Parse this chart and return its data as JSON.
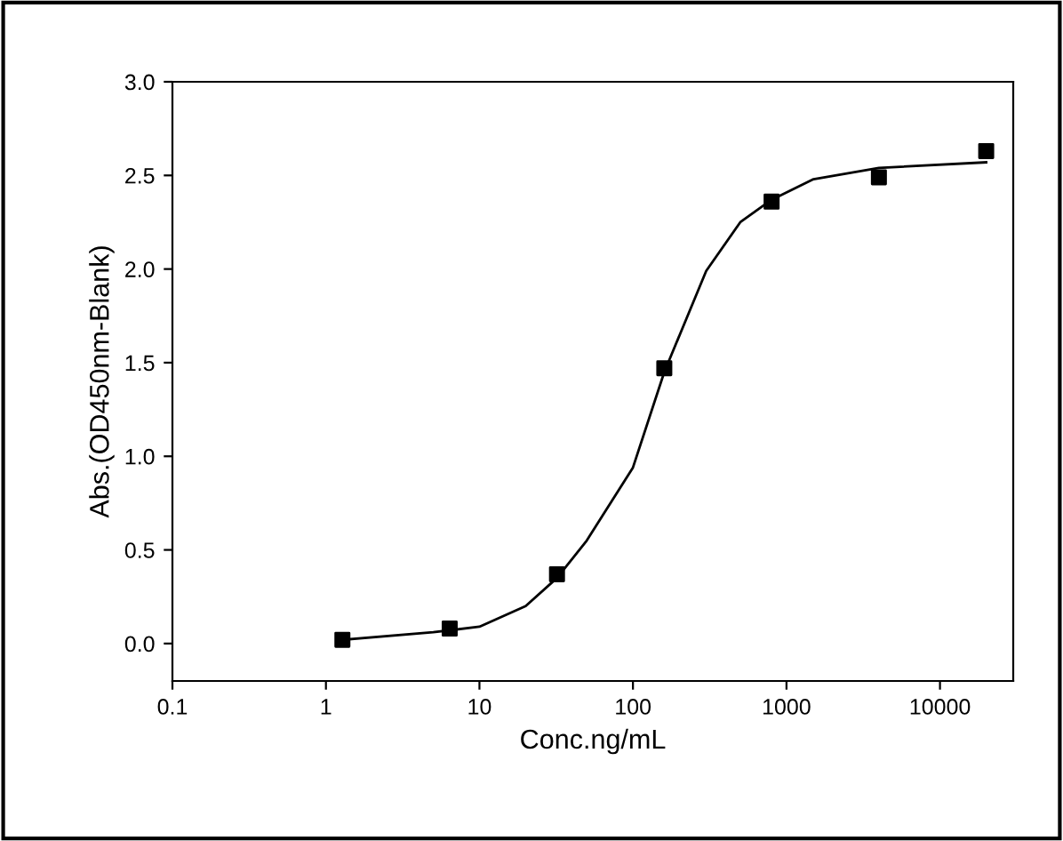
{
  "chart_data": {
    "type": "scatter",
    "xlabel": "Conc.ng/mL",
    "ylabel": "Abs.(OD450nm-Blank)",
    "log": "x",
    "xlim": [
      0.1,
      30000
    ],
    "xticks": [
      0.1,
      1,
      10,
      100,
      1000,
      10000
    ],
    "ylim": [
      -0.2,
      3.0
    ],
    "yticks": [
      {
        "value": 0,
        "label": "0.0"
      },
      0.5,
      {
        "value": 1,
        "label": "1.0"
      },
      1.5,
      {
        "value": 2,
        "label": "2.0"
      },
      2.5,
      {
        "value": 3,
        "label": "3.0"
      }
    ],
    "grid": false,
    "series": [
      {
        "marker": "square",
        "color": "#000000",
        "x": [
          1.28,
          6.4,
          32,
          160,
          800,
          4000,
          20000
        ],
        "values": [
          0.02,
          0.08,
          0.37,
          1.47,
          2.36,
          2.49,
          2.63
        ]
      },
      {
        "type": "line",
        "marker": "none",
        "color": "#000000",
        "x": [
          1.28,
          5,
          10,
          20,
          32,
          50,
          100,
          160,
          300,
          500,
          800,
          1500,
          4000,
          20000
        ],
        "values": [
          0.02,
          0.06,
          0.09,
          0.2,
          0.35,
          0.55,
          0.94,
          1.45,
          1.99,
          2.25,
          2.37,
          2.48,
          2.54,
          2.57
        ]
      }
    ]
  }
}
